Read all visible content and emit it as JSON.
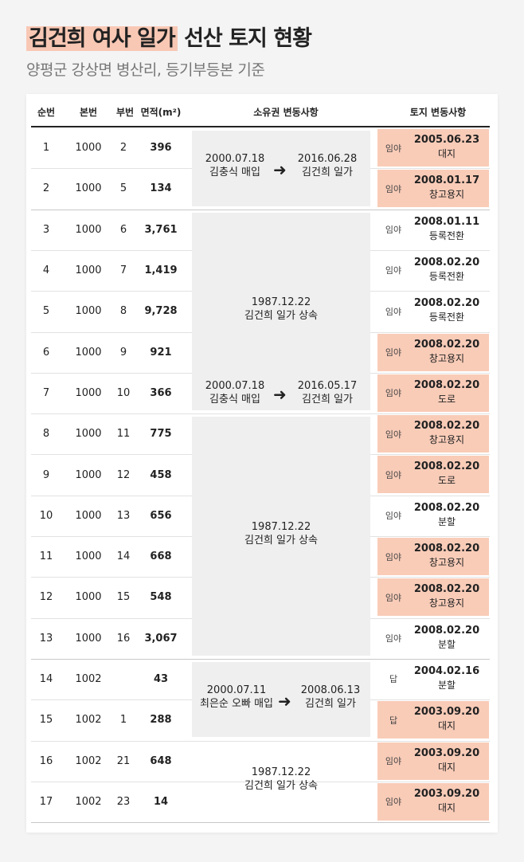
{
  "header": {
    "title_highlight": "김건희 여사 일가",
    "title_rest": " 선산 토지 현황",
    "subtitle": "양평군 강상면 병산리, 등기부등본 기준"
  },
  "columns": {
    "no": "순번",
    "main": "본번",
    "sub": "부번",
    "area": "면적(m²)",
    "ownership": "소유권 변동사항",
    "land": "토지 변동사항"
  },
  "rows": [
    {
      "no": "1",
      "main": "1000",
      "sub": "2",
      "area": "396",
      "land_kind": "임야",
      "land_date": "2005.06.23",
      "land_desc": "대지",
      "highlight": true
    },
    {
      "no": "2",
      "main": "1000",
      "sub": "5",
      "area": "134",
      "land_kind": "임야",
      "land_date": "2008.01.17",
      "land_desc": "창고용지",
      "highlight": true
    },
    {
      "no": "3",
      "main": "1000",
      "sub": "6",
      "area": "3,761",
      "land_kind": "임야",
      "land_date": "2008.01.11",
      "land_desc": "등록전환",
      "highlight": false
    },
    {
      "no": "4",
      "main": "1000",
      "sub": "7",
      "area": "1,419",
      "land_kind": "임야",
      "land_date": "2008.02.20",
      "land_desc": "등록전환",
      "highlight": false
    },
    {
      "no": "5",
      "main": "1000",
      "sub": "8",
      "area": "9,728",
      "land_kind": "임야",
      "land_date": "2008.02.20",
      "land_desc": "등록전환",
      "highlight": false
    },
    {
      "no": "6",
      "main": "1000",
      "sub": "9",
      "area": "921",
      "land_kind": "임야",
      "land_date": "2008.02.20",
      "land_desc": "창고용지",
      "highlight": true
    },
    {
      "no": "7",
      "main": "1000",
      "sub": "10",
      "area": "366",
      "land_kind": "임야",
      "land_date": "2008.02.20",
      "land_desc": "도로",
      "highlight": true
    },
    {
      "no": "8",
      "main": "1000",
      "sub": "11",
      "area": "775",
      "land_kind": "임야",
      "land_date": "2008.02.20",
      "land_desc": "창고용지",
      "highlight": true
    },
    {
      "no": "9",
      "main": "1000",
      "sub": "12",
      "area": "458",
      "land_kind": "임야",
      "land_date": "2008.02.20",
      "land_desc": "도로",
      "highlight": true
    },
    {
      "no": "10",
      "main": "1000",
      "sub": "13",
      "area": "656",
      "land_kind": "임야",
      "land_date": "2008.02.20",
      "land_desc": "분할",
      "highlight": false
    },
    {
      "no": "11",
      "main": "1000",
      "sub": "14",
      "area": "668",
      "land_kind": "임야",
      "land_date": "2008.02.20",
      "land_desc": "창고용지",
      "highlight": true
    },
    {
      "no": "12",
      "main": "1000",
      "sub": "15",
      "area": "548",
      "land_kind": "임야",
      "land_date": "2008.02.20",
      "land_desc": "창고용지",
      "highlight": true
    },
    {
      "no": "13",
      "main": "1000",
      "sub": "16",
      "area": "3,067",
      "land_kind": "임야",
      "land_date": "2008.02.20",
      "land_desc": "분할",
      "highlight": false
    },
    {
      "no": "14",
      "main": "1002",
      "sub": "",
      "area": "43",
      "land_kind": "답",
      "land_date": "2004.02.16",
      "land_desc": "분할",
      "highlight": false
    },
    {
      "no": "15",
      "main": "1002",
      "sub": "1",
      "area": "288",
      "land_kind": "답",
      "land_date": "2003.09.20",
      "land_desc": "대지",
      "highlight": true
    },
    {
      "no": "16",
      "main": "1002",
      "sub": "21",
      "area": "648",
      "land_kind": "임야",
      "land_date": "2003.09.20",
      "land_desc": "대지",
      "highlight": true
    },
    {
      "no": "17",
      "main": "1002",
      "sub": "23",
      "area": "14",
      "land_kind": "임야",
      "land_date": "2003.09.20",
      "land_desc": "대지",
      "highlight": true
    }
  ],
  "ownership_groups": [
    {
      "kind": "transfer",
      "date_a": "2000.07.18",
      "text_a": "김충식 매입",
      "date_b": "2016.06.28",
      "text_b": "김건희 일가"
    },
    {
      "kind": "inherit",
      "date": "1987.12.22",
      "text": "김건희 일가 상속"
    },
    {
      "kind": "transfer",
      "date_a": "2000.07.18",
      "text_a": "김충식 매입",
      "date_b": "2016.05.17",
      "text_b": "김건희 일가"
    },
    {
      "kind": "inherit",
      "date": "1987.12.22",
      "text": "김건희 일가 상속"
    },
    {
      "kind": "transfer",
      "date_a": "2000.07.11",
      "text_a": "최은순 오빠 매입",
      "date_b": "2008.06.13",
      "text_b": "김건희 일가"
    },
    {
      "kind": "inherit",
      "date": "1987.12.22",
      "text": "김건희 일가 상속"
    }
  ]
}
